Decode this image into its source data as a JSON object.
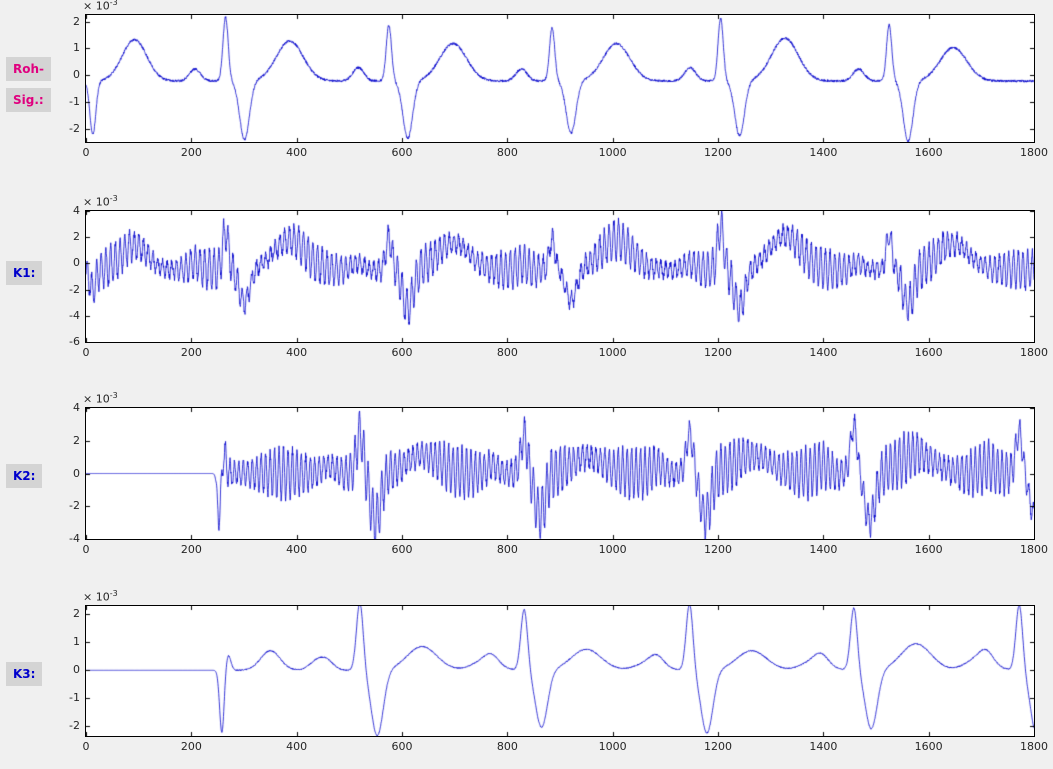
{
  "figure": {
    "bg": "#f0f0f0",
    "plot_bg": "#ffffff",
    "axis_color": "#000000",
    "tick_label_color": "#262626",
    "label_box_bg": "#d4d4d4"
  },
  "labels": {
    "raw": {
      "line1": "Roh-",
      "line2": "Sig.:",
      "color": "#e0007f"
    },
    "k1": {
      "text": "K1:",
      "color": "#0000cc"
    },
    "k2": {
      "text": "K2:",
      "color": "#0000cc"
    },
    "k3": {
      "text": "K3:",
      "color": "#0000cc"
    }
  },
  "chart_data": [
    {
      "name": "roh-sig",
      "type": "line",
      "title": "",
      "xlabel": "",
      "ylabel": "",
      "line_color": "#0000cc",
      "xlim": [
        0,
        1800
      ],
      "ylim": [
        -2.5,
        2.25
      ],
      "xticks": [
        0,
        200,
        400,
        600,
        800,
        1000,
        1200,
        1400,
        1600,
        1800
      ],
      "yticks": [
        2,
        1,
        0,
        -1,
        -2
      ],
      "y_scale_label": {
        "mantissa": "× 10",
        "exponent": "-3"
      },
      "grid": false,
      "signal": {
        "baseline": -0.22,
        "zero_until": null,
        "beats": [
          265,
          575,
          885,
          1205,
          1525
        ],
        "components": [
          {
            "name": "R",
            "offset": 0,
            "width": 7,
            "amps": [
              2.4,
              2.1,
              2.0,
              2.35,
              2.1
            ]
          },
          {
            "name": "S",
            "offset": 36,
            "width": 13,
            "amps": [
              -2.2,
              -2.15,
              -1.95,
              -2.05,
              -2.25
            ]
          },
          {
            "name": "T",
            "offset": 122,
            "width": 36,
            "amps": [
              1.5,
              1.4,
              1.4,
              1.6,
              1.25
            ]
          },
          {
            "name": "P",
            "offset": -58,
            "width": 15,
            "amps": [
              0.45,
              0.5,
              0.45,
              0.5,
              0.45
            ]
          }
        ],
        "extras": [
          {
            "x": 13,
            "amp": -2.0,
            "width": 8
          },
          {
            "x": 92,
            "amp": 1.55,
            "width": 33
          }
        ],
        "osc": {
          "freq": 0,
          "amp": 0,
          "mod_freq": 0,
          "mod_depth": 0
        },
        "noise": {
          "amp": 0.045,
          "seed": 11
        }
      }
    },
    {
      "name": "k1",
      "type": "line",
      "title": "",
      "xlabel": "",
      "ylabel": "",
      "line_color": "#0000cc",
      "xlim": [
        0,
        1800
      ],
      "ylim": [
        -6,
        4
      ],
      "xticks": [
        0,
        200,
        400,
        600,
        800,
        1000,
        1200,
        1400,
        1600,
        1800
      ],
      "yticks": [
        4,
        2,
        0,
        -2,
        -4,
        -6
      ],
      "y_scale_label": {
        "mantissa": "× 10",
        "exponent": "-3"
      },
      "grid": false,
      "signal": {
        "baseline": -0.5,
        "zero_until": null,
        "beats": [
          265,
          575,
          885,
          1205,
          1525
        ],
        "components": [
          {
            "name": "R",
            "offset": 0,
            "width": 8,
            "amps": [
              2.9,
              2.4,
              2.3,
              3.3,
              2.7
            ]
          },
          {
            "name": "S",
            "offset": 36,
            "width": 14,
            "amps": [
              -2.5,
              -2.9,
              -2.4,
              -2.9,
              -2.7
            ]
          },
          {
            "name": "T",
            "offset": 122,
            "width": 42,
            "amps": [
              2.3,
              2.1,
              2.3,
              2.6,
              2.0
            ]
          },
          {
            "name": "P",
            "offset": -58,
            "width": 15,
            "amps": [
              0.5,
              0.5,
              0.5,
              0.5,
              0.5
            ]
          }
        ],
        "extras": [
          {
            "x": 13,
            "amp": -1.6,
            "width": 8
          },
          {
            "x": 92,
            "amp": 1.9,
            "width": 35
          }
        ],
        "osc": {
          "freq": 0.112,
          "amp": 1.0,
          "mod_freq": 0.0052,
          "mod_depth": 0.45
        },
        "noise": {
          "amp": 0.28,
          "seed": 23
        }
      }
    },
    {
      "name": "k2",
      "type": "line",
      "title": "",
      "xlabel": "",
      "ylabel": "",
      "line_color": "#0000cc",
      "xlim": [
        0,
        1800
      ],
      "ylim": [
        -4,
        4
      ],
      "xticks": [
        0,
        200,
        400,
        600,
        800,
        1000,
        1200,
        1400,
        1600,
        1800
      ],
      "yticks": [
        4,
        2,
        0,
        -2,
        -4
      ],
      "y_scale_label": {
        "mantissa": "× 10",
        "exponent": "-3"
      },
      "grid": false,
      "signal": {
        "baseline": 0,
        "zero_until": 246,
        "beats": [
          520,
          832,
          1146,
          1458,
          1772
        ],
        "components": [
          {
            "name": "R",
            "offset": 0,
            "width": 9,
            "amps": [
              2.5,
              2.3,
              2.5,
              2.9,
              2.5
            ]
          },
          {
            "name": "S",
            "offset": 30,
            "width": 14,
            "amps": [
              -2.9,
              -2.5,
              -2.7,
              -2.9,
              -2.7
            ]
          },
          {
            "name": "T",
            "offset": 120,
            "width": 45,
            "amps": [
              1.1,
              1.0,
              1.1,
              1.2,
              1.0
            ]
          },
          {
            "name": "P",
            "offset": -60,
            "width": 16,
            "amps": [
              0.5,
              0.5,
              0.5,
              0.5,
              0.5
            ]
          }
        ],
        "extras": [
          {
            "x": 253,
            "amp": -2.7,
            "width": 5
          },
          {
            "x": 262,
            "amp": 1.3,
            "width": 5
          }
        ],
        "osc": {
          "freq": 0.118,
          "amp": 1.1,
          "mod_freq": 0.006,
          "mod_depth": 0.4
        },
        "noise": {
          "amp": 0.22,
          "seed": 37
        }
      }
    },
    {
      "name": "k3",
      "type": "line",
      "title": "",
      "xlabel": "",
      "ylabel": "",
      "line_color": "#0000cc",
      "xlim": [
        0,
        1800
      ],
      "ylim": [
        -2.35,
        2.3
      ],
      "xticks": [
        0,
        200,
        400,
        600,
        800,
        1000,
        1200,
        1400,
        1600,
        1800
      ],
      "yticks": [
        2,
        1,
        0,
        -1,
        -2
      ],
      "y_scale_label": {
        "mantissa": "× 10",
        "exponent": "-3"
      },
      "grid": false,
      "signal": {
        "baseline": 0,
        "zero_until": 248,
        "beats": [
          520,
          832,
          1146,
          1458,
          1772
        ],
        "components": [
          {
            "name": "R",
            "offset": 0,
            "width": 9,
            "amps": [
              2.45,
              2.2,
              2.4,
              2.25,
              2.35
            ]
          },
          {
            "name": "S",
            "offset": 33,
            "width": 16,
            "amps": [
              -2.35,
              -2.05,
              -2.25,
              -2.1,
              -2.3
            ]
          },
          {
            "name": "T",
            "offset": 118,
            "width": 40,
            "amps": [
              0.85,
              0.75,
              0.7,
              0.95,
              0.8
            ]
          },
          {
            "name": "P",
            "offset": -62,
            "width": 18,
            "amps": [
              0.3,
              0.28,
              0.3,
              0.3,
              0.35
            ]
          },
          {
            "name": "U",
            "offset": 238,
            "width": 34,
            "amps": [
              0.35,
              0.3,
              0.35,
              0.45,
              0
            ]
          }
        ],
        "extras": [
          {
            "x": 258,
            "amp": -2.25,
            "width": 6
          },
          {
            "x": 270,
            "amp": 0.55,
            "width": 7
          },
          {
            "x": 350,
            "amp": 0.7,
            "width": 26
          },
          {
            "x": 438,
            "amp": 0.32,
            "width": 20
          }
        ],
        "osc": {
          "freq": 0,
          "amp": 0,
          "mod_freq": 0,
          "mod_depth": 0
        },
        "noise": {
          "amp": 0.02,
          "seed": 51
        }
      }
    }
  ]
}
